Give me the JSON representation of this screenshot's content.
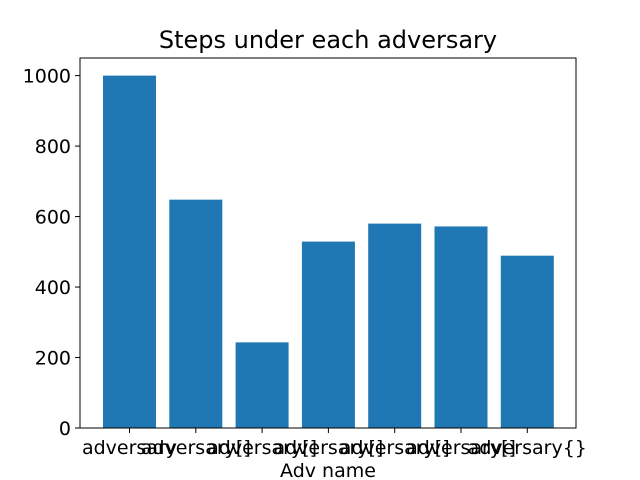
{
  "chart_data": {
    "type": "bar",
    "title": "Steps under each adversary",
    "xlabel": "Adv name",
    "ylabel": "",
    "categories": [
      "adversary",
      "adversary[]",
      "adversary[]",
      "adversary[]",
      "adversary[]",
      "adversary[]",
      "adversary{}"
    ],
    "values": [
      1000,
      648,
      243,
      529,
      580,
      572,
      489
    ],
    "ylim": [
      0,
      1050
    ],
    "yticks": [
      0,
      200,
      400,
      600,
      800,
      1000
    ],
    "bar_color": "#1f77b4",
    "grid": false,
    "legend": "none"
  }
}
